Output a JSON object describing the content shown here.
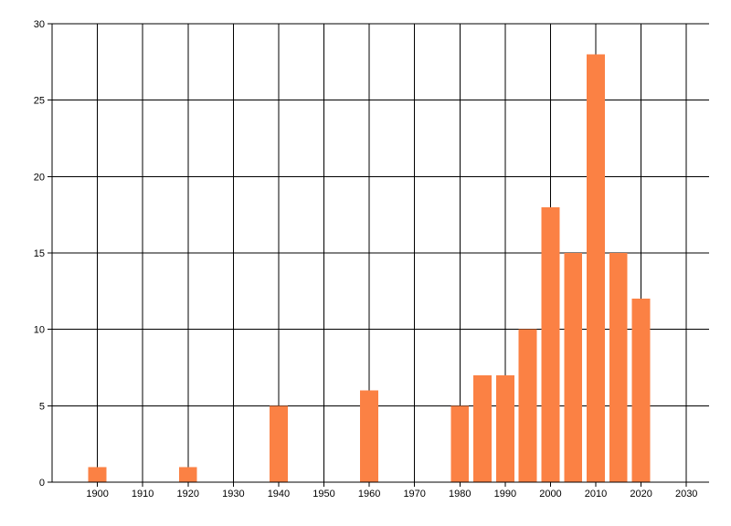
{
  "page": {
    "background_color": "#ffffff"
  },
  "chart_data": {
    "type": "bar",
    "title": "",
    "xlabel": "",
    "ylabel": "",
    "x": [
      1900,
      1920,
      1940,
      1960,
      1980,
      1985,
      1990,
      1995,
      2000,
      2005,
      2010,
      2015,
      2020
    ],
    "values": [
      1,
      1,
      5,
      6,
      5,
      7,
      7,
      10,
      18,
      15,
      28,
      15,
      12
    ],
    "bar_width_years": 4,
    "xlim": [
      1890,
      2035
    ],
    "ylim": [
      0,
      30
    ],
    "x_tick_labels": [
      "1900",
      "1910",
      "1920",
      "1930",
      "1940",
      "1950",
      "1960",
      "1970",
      "1980",
      "1990",
      "2000",
      "2010",
      "2020",
      "2030"
    ],
    "x_ticks": [
      1900,
      1910,
      1920,
      1930,
      1940,
      1950,
      1960,
      1970,
      1980,
      1990,
      2000,
      2010,
      2020,
      2030
    ],
    "y_tick_labels": [
      "0",
      "5",
      "10",
      "15",
      "20",
      "25",
      "30"
    ],
    "y_ticks": [
      0,
      5,
      10,
      15,
      20,
      25,
      30
    ],
    "grid": true,
    "legend": "none",
    "bar_color": "#fb8144",
    "grid_color": "#000000",
    "axis_color": "#000000",
    "text_color": "#000000"
  }
}
